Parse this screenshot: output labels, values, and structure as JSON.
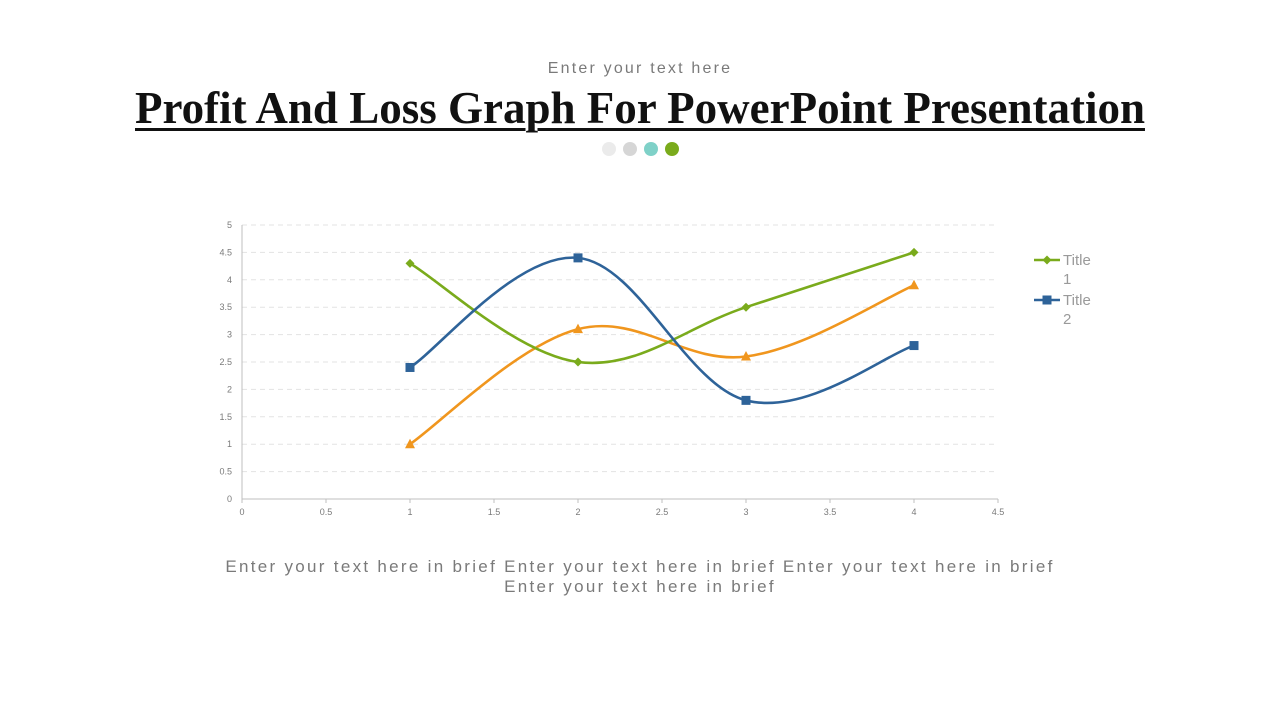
{
  "header": {
    "subtitle": "Enter your text here",
    "title": "Profit And Loss Graph For PowerPoint Presentation",
    "dot_colors": [
      "#ebebeb",
      "#d6d6d6",
      "#7fd1c8",
      "#7aab1c"
    ]
  },
  "footer": {
    "line1": "Enter your text here in brief Enter your text here in brief Enter your text here in brief",
    "line2": "Enter your text here in brief"
  },
  "chart_data": {
    "type": "scatter",
    "smooth": true,
    "xlim": [
      0,
      4.5
    ],
    "ylim": [
      0,
      5
    ],
    "x_ticks": [
      "0",
      "0.5",
      "1",
      "1.5",
      "2",
      "2.5",
      "3",
      "3.5",
      "4",
      "4.5"
    ],
    "y_ticks": [
      "0",
      "0.5",
      "1",
      "1.5",
      "2",
      "2.5",
      "3",
      "3.5",
      "4",
      "4.5",
      "5"
    ],
    "grid": "horizontal-dashed",
    "legend_position": "right",
    "series": [
      {
        "name": "Title 1",
        "name_lines": [
          "Title",
          "1"
        ],
        "color": "#7aab1c",
        "marker": "diamond",
        "x": [
          1,
          2,
          3,
          4
        ],
        "y": [
          4.3,
          2.5,
          3.5,
          4.5
        ]
      },
      {
        "name": "Title 2",
        "name_lines": [
          "Title",
          "2"
        ],
        "color": "#2e6399",
        "marker": "square",
        "x": [
          1,
          2,
          3,
          4
        ],
        "y": [
          2.4,
          4.4,
          1.8,
          2.8
        ]
      },
      {
        "color": "#f0961e",
        "marker": "triangle",
        "x": [
          1,
          2,
          3,
          4
        ],
        "y": [
          1.0,
          3.1,
          2.6,
          3.9
        ]
      }
    ]
  }
}
